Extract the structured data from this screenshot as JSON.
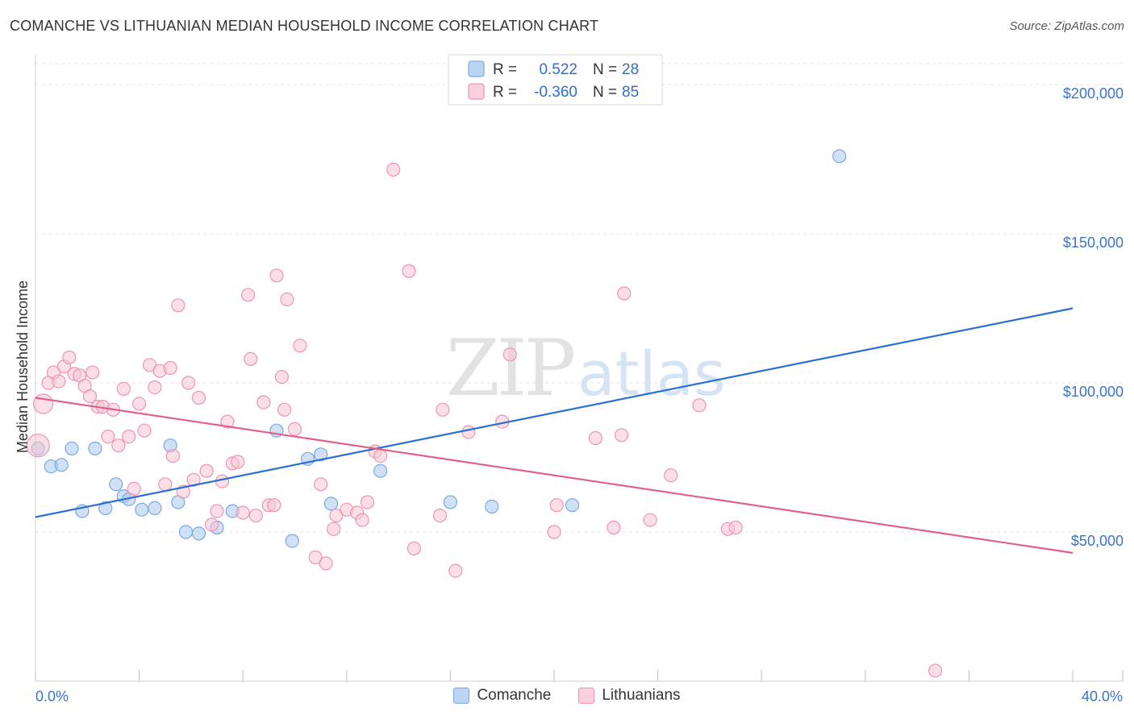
{
  "title": "COMANCHE VS LITHUANIAN MEDIAN HOUSEHOLD INCOME CORRELATION CHART",
  "source": "Source: ZipAtlas.com",
  "watermark": {
    "zip": "ZIP",
    "atlas": "atlas"
  },
  "chart_data": {
    "type": "scatter",
    "xlabel": "",
    "ylabel": "Median Household Income",
    "xlim": [
      0,
      40
    ],
    "ylim": [
      0,
      210000
    ],
    "x_tick_labels": {
      "min": "0.0%",
      "max": "40.0%"
    },
    "y_ticks": [
      {
        "value": 50000,
        "label": "$50,000"
      },
      {
        "value": 100000,
        "label": "$100,000"
      },
      {
        "value": 150000,
        "label": "$150,000"
      },
      {
        "value": 200000,
        "label": "$200,000"
      }
    ],
    "legend": {
      "r_label": "R =",
      "n_label": "N =",
      "entries": [
        {
          "name": "Comanche",
          "r": "0.522",
          "n": "28"
        },
        {
          "name": "Lithuanians",
          "r": "-0.360",
          "n": "85"
        }
      ]
    },
    "series": [
      {
        "name": "Comanche",
        "color": "#a9c8ef",
        "stroke": "#7aa8e0",
        "line_color": "#2a70d0",
        "trend": {
          "x0": 0,
          "y0": 55000,
          "x1": 40,
          "y1": 125000
        },
        "points": [
          [
            0.1,
            78000
          ],
          [
            0.6,
            72000
          ],
          [
            1.0,
            72500
          ],
          [
            1.4,
            78000
          ],
          [
            1.8,
            57000
          ],
          [
            2.3,
            78000
          ],
          [
            2.7,
            58000
          ],
          [
            3.1,
            66000
          ],
          [
            3.4,
            62000
          ],
          [
            3.6,
            61000
          ],
          [
            4.1,
            57500
          ],
          [
            4.6,
            58000
          ],
          [
            5.2,
            79000
          ],
          [
            5.5,
            60000
          ],
          [
            5.8,
            50000
          ],
          [
            6.3,
            49500
          ],
          [
            7.0,
            51500
          ],
          [
            7.6,
            57000
          ],
          [
            9.3,
            84000
          ],
          [
            9.9,
            47000
          ],
          [
            10.5,
            74500
          ],
          [
            11.0,
            76000
          ],
          [
            11.4,
            59500
          ],
          [
            13.3,
            70500
          ],
          [
            16.0,
            60000
          ],
          [
            17.6,
            58500
          ],
          [
            20.7,
            59000
          ],
          [
            31.0,
            176000
          ]
        ]
      },
      {
        "name": "Lithuanians",
        "color": "#f8c4d4",
        "stroke": "#ee94b0",
        "line_color": "#e0608c",
        "trend": {
          "x0": 0,
          "y0": 95000,
          "x1": 40,
          "y1": 43000
        },
        "points": [
          [
            0.1,
            79000
          ],
          [
            0.3,
            93000
          ],
          [
            0.5,
            100000
          ],
          [
            0.7,
            103500
          ],
          [
            0.9,
            100500
          ],
          [
            1.1,
            105500
          ],
          [
            1.3,
            108500
          ],
          [
            1.5,
            103000
          ],
          [
            1.7,
            102500
          ],
          [
            1.9,
            99000
          ],
          [
            2.1,
            95500
          ],
          [
            2.2,
            103500
          ],
          [
            2.4,
            92000
          ],
          [
            2.6,
            92000
          ],
          [
            2.8,
            82000
          ],
          [
            3.0,
            91000
          ],
          [
            3.2,
            79000
          ],
          [
            3.4,
            98000
          ],
          [
            3.6,
            82000
          ],
          [
            3.8,
            64500
          ],
          [
            4.0,
            93000
          ],
          [
            4.2,
            84000
          ],
          [
            4.4,
            106000
          ],
          [
            4.6,
            98500
          ],
          [
            4.8,
            104000
          ],
          [
            5.0,
            66000
          ],
          [
            5.2,
            105000
          ],
          [
            5.3,
            75500
          ],
          [
            5.5,
            126000
          ],
          [
            5.7,
            63500
          ],
          [
            5.9,
            100000
          ],
          [
            6.1,
            67500
          ],
          [
            6.3,
            95000
          ],
          [
            6.6,
            70500
          ],
          [
            6.8,
            52500
          ],
          [
            7.0,
            57000
          ],
          [
            7.2,
            67000
          ],
          [
            7.4,
            87000
          ],
          [
            7.6,
            73000
          ],
          [
            7.8,
            73500
          ],
          [
            8.0,
            56500
          ],
          [
            8.2,
            129500
          ],
          [
            8.3,
            108000
          ],
          [
            8.5,
            55500
          ],
          [
            8.8,
            93500
          ],
          [
            9.0,
            59000
          ],
          [
            9.2,
            59000
          ],
          [
            9.3,
            136000
          ],
          [
            9.5,
            102000
          ],
          [
            9.6,
            91000
          ],
          [
            9.7,
            128000
          ],
          [
            10.0,
            84500
          ],
          [
            10.2,
            112500
          ],
          [
            10.8,
            41500
          ],
          [
            11.0,
            66000
          ],
          [
            11.2,
            39500
          ],
          [
            11.5,
            51000
          ],
          [
            11.6,
            55500
          ],
          [
            12.0,
            57500
          ],
          [
            12.4,
            56500
          ],
          [
            12.6,
            54000
          ],
          [
            12.8,
            60000
          ],
          [
            13.1,
            77000
          ],
          [
            13.3,
            75500
          ],
          [
            13.8,
            171500
          ],
          [
            14.4,
            137500
          ],
          [
            14.6,
            44500
          ],
          [
            15.6,
            55500
          ],
          [
            15.7,
            91000
          ],
          [
            16.2,
            37000
          ],
          [
            16.7,
            83500
          ],
          [
            18.0,
            87000
          ],
          [
            18.3,
            109500
          ],
          [
            20.0,
            50000
          ],
          [
            20.1,
            59000
          ],
          [
            21.6,
            81500
          ],
          [
            22.3,
            51500
          ],
          [
            22.6,
            82500
          ],
          [
            22.7,
            130000
          ],
          [
            23.7,
            54000
          ],
          [
            24.5,
            69000
          ],
          [
            25.6,
            92500
          ],
          [
            26.7,
            51000
          ],
          [
            27.0,
            51500
          ],
          [
            34.7,
            3500
          ]
        ]
      }
    ]
  }
}
